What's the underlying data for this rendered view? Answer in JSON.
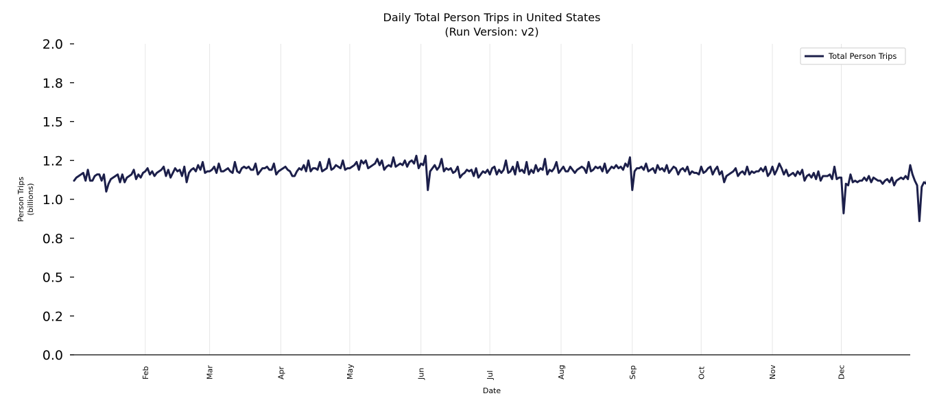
{
  "chart_data": {
    "type": "line",
    "title": "Daily Total Person Trips in United States",
    "subtitle": "(Run Version: v2)",
    "xlabel": "Date",
    "ylabel": [
      "Person Trips",
      "(billions)"
    ],
    "ylim": [
      0,
      2
    ],
    "yticks": [
      0.0,
      0.25,
      0.5,
      0.75,
      1.0,
      1.25,
      1.5,
      1.75,
      2.0
    ],
    "ytick_labels": [
      "0.0",
      "0.2",
      "0.5",
      "0.8",
      "1.0",
      "1.2",
      "1.5",
      "1.8",
      "2.0"
    ],
    "x_domain_days": [
      1,
      365
    ],
    "month_ticks": [
      {
        "label": "Feb",
        "day": 32
      },
      {
        "label": "Mar",
        "day": 60
      },
      {
        "label": "Apr",
        "day": 91
      },
      {
        "label": "May",
        "day": 121
      },
      {
        "label": "Jun",
        "day": 152
      },
      {
        "label": "Jul",
        "day": 182
      },
      {
        "label": "Aug",
        "day": 213
      },
      {
        "label": "Sep",
        "day": 244
      },
      {
        "label": "Oct",
        "day": 274
      },
      {
        "label": "Nov",
        "day": 305
      },
      {
        "label": "Dec",
        "day": 335
      }
    ],
    "grid": "vertical",
    "legend_position": "top-right",
    "series": [
      {
        "name": "Total Person Trips",
        "color": "#1c1f4a",
        "note": "daily values in billions, one per day of year (day 1 = Jan 1)",
        "values": [
          1.12,
          1.14,
          1.15,
          1.16,
          1.17,
          1.12,
          1.19,
          1.12,
          1.12,
          1.15,
          1.16,
          1.16,
          1.12,
          1.16,
          1.05,
          1.1,
          1.13,
          1.14,
          1.15,
          1.16,
          1.11,
          1.16,
          1.11,
          1.14,
          1.15,
          1.16,
          1.19,
          1.13,
          1.16,
          1.14,
          1.17,
          1.18,
          1.2,
          1.16,
          1.18,
          1.15,
          1.17,
          1.18,
          1.19,
          1.21,
          1.15,
          1.19,
          1.14,
          1.17,
          1.2,
          1.18,
          1.19,
          1.15,
          1.21,
          1.11,
          1.17,
          1.19,
          1.2,
          1.18,
          1.22,
          1.19,
          1.24,
          1.17,
          1.18,
          1.18,
          1.19,
          1.21,
          1.17,
          1.23,
          1.18,
          1.18,
          1.19,
          1.2,
          1.18,
          1.17,
          1.24,
          1.18,
          1.17,
          1.2,
          1.21,
          1.2,
          1.21,
          1.19,
          1.19,
          1.23,
          1.16,
          1.18,
          1.2,
          1.2,
          1.21,
          1.19,
          1.19,
          1.23,
          1.16,
          1.18,
          1.19,
          1.2,
          1.21,
          1.19,
          1.18,
          1.15,
          1.15,
          1.18,
          1.2,
          1.19,
          1.22,
          1.18,
          1.25,
          1.18,
          1.2,
          1.2,
          1.19,
          1.24,
          1.18,
          1.19,
          1.2,
          1.26,
          1.19,
          1.2,
          1.22,
          1.21,
          1.2,
          1.25,
          1.19,
          1.2,
          1.2,
          1.21,
          1.22,
          1.24,
          1.19,
          1.25,
          1.23,
          1.25,
          1.2,
          1.21,
          1.22,
          1.23,
          1.26,
          1.22,
          1.25,
          1.19,
          1.21,
          1.22,
          1.21,
          1.27,
          1.21,
          1.22,
          1.23,
          1.22,
          1.25,
          1.21,
          1.24,
          1.25,
          1.23,
          1.28,
          1.2,
          1.23,
          1.22,
          1.28,
          1.06,
          1.18,
          1.2,
          1.22,
          1.19,
          1.21,
          1.26,
          1.18,
          1.2,
          1.19,
          1.2,
          1.17,
          1.18,
          1.21,
          1.14,
          1.16,
          1.17,
          1.19,
          1.18,
          1.19,
          1.15,
          1.2,
          1.14,
          1.16,
          1.18,
          1.17,
          1.19,
          1.16,
          1.2,
          1.21,
          1.16,
          1.19,
          1.17,
          1.19,
          1.25,
          1.17,
          1.18,
          1.21,
          1.16,
          1.24,
          1.18,
          1.19,
          1.17,
          1.24,
          1.16,
          1.19,
          1.17,
          1.22,
          1.18,
          1.2,
          1.19,
          1.26,
          1.16,
          1.19,
          1.18,
          1.2,
          1.24,
          1.17,
          1.19,
          1.21,
          1.18,
          1.18,
          1.21,
          1.19,
          1.17,
          1.19,
          1.2,
          1.21,
          1.2,
          1.17,
          1.24,
          1.18,
          1.19,
          1.21,
          1.2,
          1.21,
          1.18,
          1.23,
          1.17,
          1.19,
          1.21,
          1.2,
          1.22,
          1.2,
          1.21,
          1.19,
          1.23,
          1.21,
          1.27,
          1.06,
          1.18,
          1.2,
          1.2,
          1.21,
          1.19,
          1.23,
          1.18,
          1.19,
          1.2,
          1.17,
          1.22,
          1.19,
          1.2,
          1.18,
          1.22,
          1.17,
          1.19,
          1.21,
          1.2,
          1.16,
          1.19,
          1.2,
          1.18,
          1.21,
          1.16,
          1.18,
          1.17,
          1.17,
          1.16,
          1.21,
          1.17,
          1.18,
          1.2,
          1.21,
          1.16,
          1.19,
          1.21,
          1.16,
          1.18,
          1.11,
          1.15,
          1.16,
          1.17,
          1.18,
          1.2,
          1.15,
          1.17,
          1.18,
          1.16,
          1.21,
          1.16,
          1.18,
          1.17,
          1.18,
          1.18,
          1.2,
          1.18,
          1.21,
          1.15,
          1.17,
          1.21,
          1.16,
          1.19,
          1.23,
          1.2,
          1.16,
          1.19,
          1.15,
          1.16,
          1.17,
          1.15,
          1.18,
          1.16,
          1.19,
          1.12,
          1.15,
          1.16,
          1.14,
          1.17,
          1.13,
          1.18,
          1.12,
          1.15,
          1.15,
          1.15,
          1.16,
          1.13,
          1.21,
          1.13,
          1.14,
          1.14,
          0.91,
          1.1,
          1.09,
          1.16,
          1.11,
          1.12,
          1.11,
          1.12,
          1.12,
          1.14,
          1.12,
          1.15,
          1.11,
          1.14,
          1.13,
          1.12,
          1.12,
          1.1,
          1.12,
          1.13,
          1.11,
          1.14,
          1.09,
          1.12,
          1.13,
          1.14,
          1.13,
          1.15,
          1.13,
          1.22,
          1.16,
          1.12,
          1.09,
          0.86,
          1.08,
          1.11,
          1.1,
          1.18,
          1.11,
          1.12
        ]
      }
    ]
  }
}
